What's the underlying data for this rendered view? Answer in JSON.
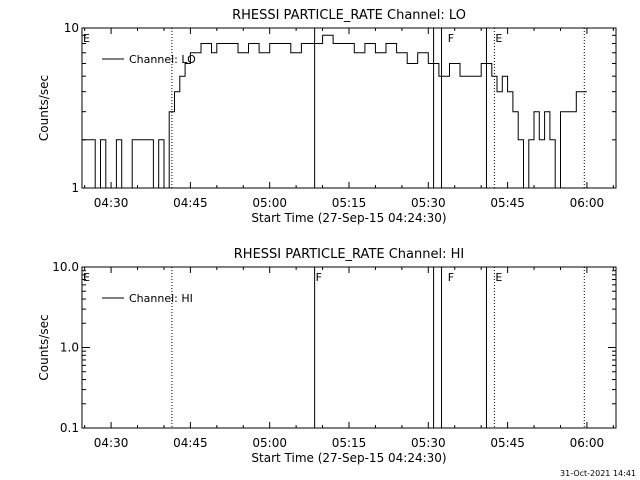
{
  "chart_data": [
    {
      "type": "line",
      "title": "RHESSI PARTICLE_RATE Channel: LO",
      "xlabel": "Start Time (27-Sep-15 04:24:30)",
      "ylabel": "Counts/sec",
      "yscale": "log",
      "ylim": [
        1,
        10
      ],
      "xlim": [
        "04:24:30",
        "06:05:30"
      ],
      "x_ticks": [
        "04:30",
        "04:45",
        "05:00",
        "05:15",
        "05:30",
        "05:45",
        "06:00"
      ],
      "y_ticks": [
        "1",
        "10"
      ],
      "legend": {
        "entries": [
          "Channel: LO"
        ],
        "position": "top-left"
      },
      "series": [
        {
          "name": "Channel: LO",
          "x": [
            "04:24:30",
            "04:26:00",
            "04:27:00",
            "04:28:00",
            "04:29:00",
            "04:30:00",
            "04:31:00",
            "04:32:00",
            "04:33:00",
            "04:34:00",
            "04:35:00",
            "04:36:00",
            "04:37:00",
            "04:38:00",
            "04:39:00",
            "04:40:00",
            "04:41:00",
            "04:42:00",
            "04:43:00",
            "04:44:00",
            "04:45:00",
            "04:46:00",
            "04:47:00",
            "04:48:00",
            "04:49:00",
            "04:50:00",
            "04:52:00",
            "04:54:00",
            "04:56:00",
            "04:58:00",
            "05:00:00",
            "05:02:00",
            "05:04:00",
            "05:06:00",
            "05:08:00",
            "05:10:00",
            "05:12:00",
            "05:14:00",
            "05:16:00",
            "05:18:00",
            "05:20:00",
            "05:22:00",
            "05:24:00",
            "05:26:00",
            "05:28:00",
            "05:30:00",
            "05:32:00",
            "05:34:00",
            "05:36:00",
            "05:38:00",
            "05:40:00",
            "05:42:00",
            "05:43:00",
            "05:44:00",
            "05:45:00",
            "05:46:00",
            "05:47:00",
            "05:48:00",
            "05:49:00",
            "05:50:00",
            "05:51:00",
            "05:52:00",
            "05:53:00",
            "05:54:00",
            "05:55:00",
            "05:56:00",
            "05:57:00",
            "05:58:00",
            "05:59:00",
            "06:00:00"
          ],
          "values": [
            2,
            2,
            1,
            2,
            1,
            1,
            2,
            1,
            1,
            2,
            2,
            2,
            2,
            1,
            2,
            1,
            3,
            4,
            5,
            6,
            7,
            7,
            8,
            8,
            7,
            8,
            8,
            7,
            8,
            7,
            8,
            8,
            7,
            8,
            8,
            9,
            8,
            8,
            7,
            8,
            7,
            8,
            7,
            6,
            7,
            6,
            5,
            6,
            5,
            5,
            6,
            5,
            4,
            5,
            4,
            3,
            2,
            1,
            2,
            3,
            2,
            3,
            2,
            1,
            3,
            3,
            3,
            4,
            4,
            4
          ]
        }
      ],
      "annotations": [
        {
          "label": "E",
          "x": "04:24:30"
        },
        {
          "label": "F",
          "x": "05:33:30"
        },
        {
          "label": "E",
          "x": "05:42:30"
        }
      ],
      "dotted_lines_x": [
        "04:41:30",
        "05:42:30",
        "05:59:30"
      ],
      "solid_lines_x": [
        "05:08:30",
        "05:31:00",
        "05:32:30",
        "05:41:00"
      ]
    },
    {
      "type": "line",
      "title": "RHESSI PARTICLE_RATE Channel: HI",
      "xlabel": "Start Time (27-Sep-15 04:24:30)",
      "ylabel": "Counts/sec",
      "yscale": "log",
      "ylim": [
        0.1,
        10.0
      ],
      "xlim": [
        "04:24:30",
        "06:05:30"
      ],
      "x_ticks": [
        "04:30",
        "04:45",
        "05:00",
        "05:15",
        "05:30",
        "05:45",
        "06:00"
      ],
      "y_ticks": [
        "0.1",
        "1.0",
        "10.0"
      ],
      "legend": {
        "entries": [
          "Channel: HI"
        ],
        "position": "top-left"
      },
      "series": [
        {
          "name": "Channel: HI",
          "x": [],
          "values": []
        }
      ],
      "annotations": [
        {
          "label": "E",
          "x": "04:24:30"
        },
        {
          "label": "F",
          "x": "05:08:30"
        },
        {
          "label": "F",
          "x": "05:33:30"
        },
        {
          "label": "E",
          "x": "05:42:30"
        }
      ],
      "dotted_lines_x": [
        "04:41:30",
        "05:42:30",
        "05:59:30"
      ],
      "solid_lines_x": [
        "05:08:30",
        "05:31:00",
        "05:32:30",
        "05:41:00"
      ]
    }
  ],
  "footer": {
    "timestamp": "31-Oct-2021 14:41"
  }
}
